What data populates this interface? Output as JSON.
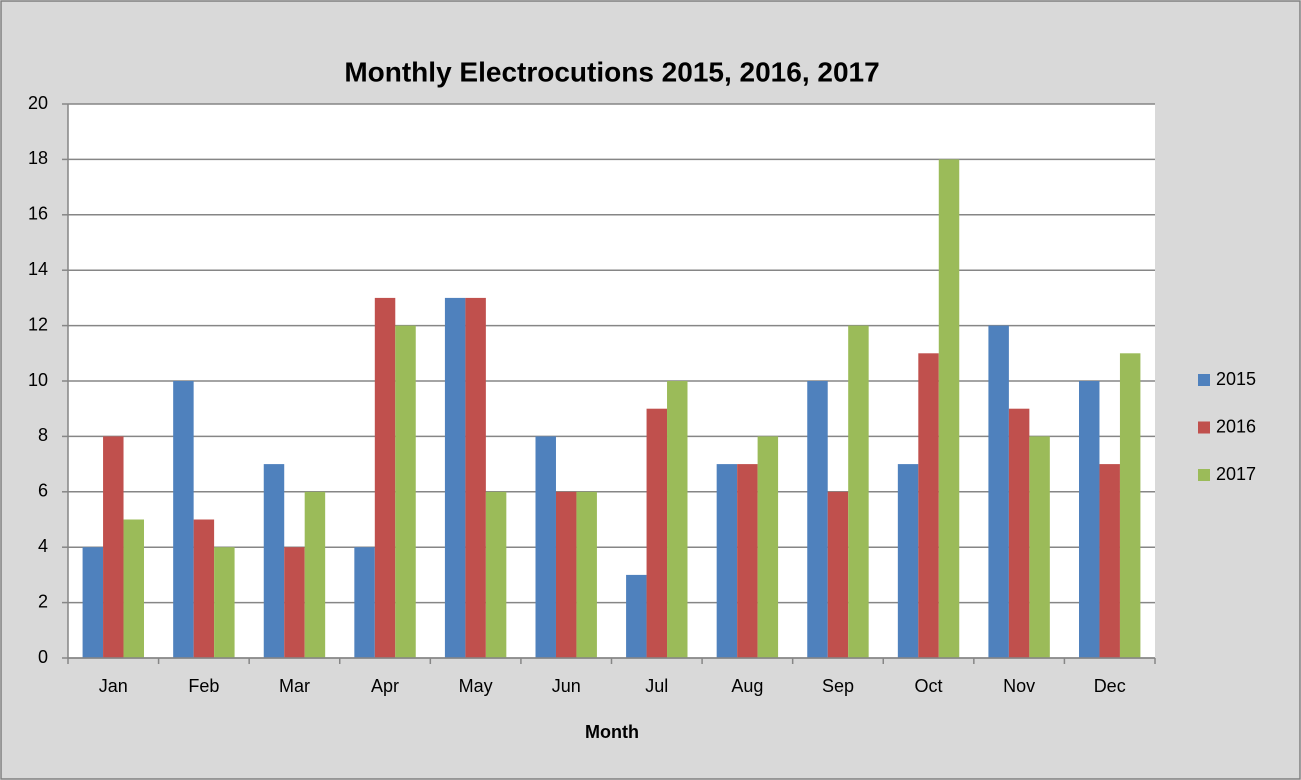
{
  "chart_data": {
    "type": "bar",
    "title": "Monthly Electrocutions 2015, 2016, 2017",
    "x_label": "Month",
    "categories": [
      "Jan",
      "Feb",
      "Mar",
      "Apr",
      "May",
      "Jun",
      "Jul",
      "Aug",
      "Sep",
      "Oct",
      "Nov",
      "Dec"
    ],
    "series": [
      {
        "name": "2015",
        "color": "#4f81bd",
        "values": [
          4,
          10,
          7,
          4,
          13,
          8,
          3,
          7,
          10,
          7,
          12,
          10
        ]
      },
      {
        "name": "2016",
        "color": "#c0504d",
        "values": [
          8,
          5,
          4,
          13,
          13,
          6,
          9,
          7,
          6,
          11,
          9,
          7
        ]
      },
      {
        "name": "2017",
        "color": "#9bbb59",
        "values": [
          5,
          4,
          6,
          12,
          6,
          6,
          10,
          8,
          12,
          18,
          8,
          11
        ]
      }
    ],
    "ylim": [
      0,
      20
    ],
    "yticks": [
      0,
      2,
      4,
      6,
      8,
      10,
      12,
      14,
      16,
      18,
      20
    ],
    "grid": true,
    "legend": "right"
  }
}
